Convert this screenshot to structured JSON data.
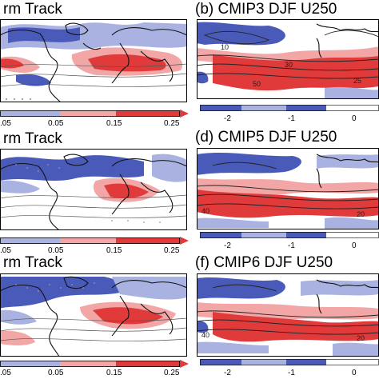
{
  "panels": {
    "a": {
      "title": "rm Track",
      "ticks": [
        ".05",
        "0.05",
        "0.15",
        "0.25"
      ]
    },
    "b": {
      "title": "(b) CMIP3 DJF U250",
      "ticks": [
        "-2",
        "-1",
        "0"
      ]
    },
    "c": {
      "title": "rm Track",
      "ticks": [
        ".05",
        "0.05",
        "0.15",
        "0.25"
      ]
    },
    "d": {
      "title": "(d) CMIP5 DJF U250",
      "ticks": [
        "-2",
        "-1",
        "0"
      ]
    },
    "e": {
      "title": "rm Track",
      "ticks": [
        ".05",
        "0.05",
        "0.15",
        "0.25"
      ]
    },
    "f": {
      "title": "(f) CMIP6 DJF U250",
      "ticks": [
        "-2",
        "-1",
        "0"
      ]
    }
  },
  "colors": {
    "positive": "#e03a3a",
    "positive_light": "#f2a6a6",
    "negative": "#4a5ab8",
    "negative_light": "#a9b2e0",
    "land_outline": "#111111"
  }
}
